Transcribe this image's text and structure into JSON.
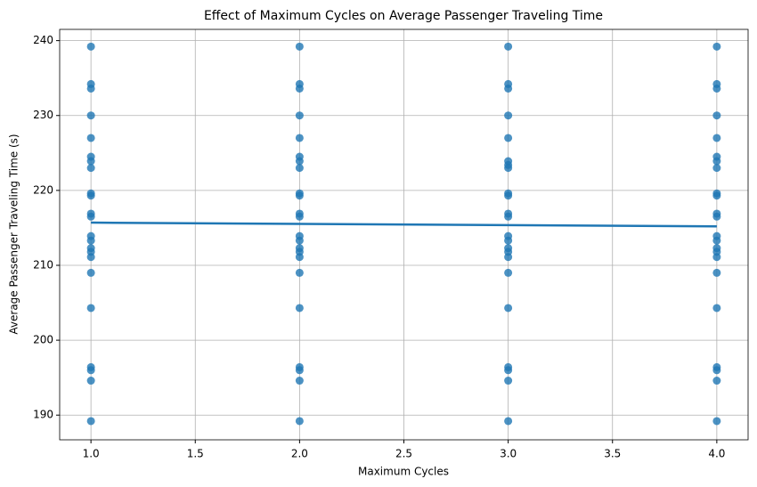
{
  "chart_data": {
    "type": "scatter",
    "title": "Effect of Maximum Cycles on Average Passenger Traveling Time",
    "xlabel": "Maximum Cycles",
    "ylabel": "Average Passenger Traveling Time (s)",
    "xlim": [
      0.85,
      4.15
    ],
    "ylim": [
      186.7,
      241.5
    ],
    "xticks": [
      {
        "value": 1,
        "label": "1.0"
      },
      {
        "value": 1.5,
        "label": "1.5"
      },
      {
        "value": 2,
        "label": "2.0"
      },
      {
        "value": 2.5,
        "label": "2.5"
      },
      {
        "value": 3,
        "label": "3.0"
      },
      {
        "value": 3.5,
        "label": "3.5"
      },
      {
        "value": 4,
        "label": "4.0"
      }
    ],
    "yticks": [
      190,
      200,
      210,
      220,
      230,
      240
    ],
    "grid": true,
    "color": "#1f77b4",
    "x": [
      1,
      1,
      1,
      1,
      1,
      1,
      1,
      1,
      1,
      1,
      1,
      1,
      1,
      1,
      1,
      1,
      1,
      1,
      1,
      1,
      1,
      1,
      1,
      2,
      2,
      2,
      2,
      2,
      2,
      2,
      2,
      2,
      2,
      2,
      2,
      2,
      2,
      2,
      2,
      2,
      2,
      2,
      2,
      2,
      2,
      2,
      3,
      3,
      3,
      3,
      3,
      3,
      3,
      3,
      3,
      3,
      3,
      3,
      3,
      3,
      3,
      3,
      3,
      3,
      3,
      3,
      3,
      3,
      3,
      4,
      4,
      4,
      4,
      4,
      4,
      4,
      4,
      4,
      4,
      4,
      4,
      4,
      4,
      4,
      4,
      4,
      4,
      4,
      4,
      4,
      4,
      4
    ],
    "y": [
      239.2,
      234.2,
      233.6,
      230.0,
      227.0,
      224.5,
      223.9,
      223.0,
      219.6,
      219.3,
      216.9,
      216.5,
      213.9,
      213.3,
      212.3,
      211.8,
      211.1,
      209.0,
      204.3,
      196.4,
      196.0,
      194.6,
      189.2,
      239.2,
      234.2,
      233.6,
      230.0,
      227.0,
      224.5,
      223.9,
      223.0,
      219.6,
      219.3,
      216.9,
      216.5,
      213.9,
      213.3,
      212.3,
      211.8,
      211.1,
      209.0,
      204.3,
      196.4,
      196.0,
      194.6,
      189.2,
      239.2,
      234.2,
      233.6,
      230.0,
      227.0,
      223.9,
      223.4,
      223.0,
      219.6,
      219.3,
      216.9,
      216.5,
      213.9,
      213.3,
      212.3,
      211.8,
      211.1,
      209.0,
      204.3,
      196.4,
      196.0,
      194.6,
      189.2,
      239.2,
      234.2,
      233.6,
      230.0,
      227.0,
      224.5,
      223.9,
      223.0,
      219.6,
      219.3,
      216.9,
      216.5,
      213.9,
      213.3,
      212.3,
      211.8,
      211.1,
      209.0,
      204.3,
      196.4,
      196.0,
      194.6,
      189.2
    ],
    "trend": {
      "x": [
        1,
        4
      ],
      "y": [
        215.7,
        215.2
      ]
    }
  }
}
